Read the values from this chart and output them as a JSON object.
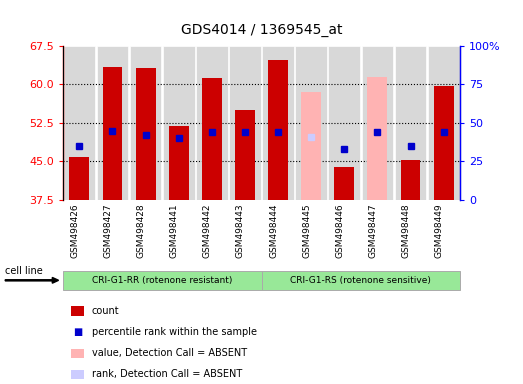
{
  "title": "GDS4014 / 1369545_at",
  "samples": [
    "GSM498426",
    "GSM498427",
    "GSM498428",
    "GSM498441",
    "GSM498442",
    "GSM498443",
    "GSM498444",
    "GSM498445",
    "GSM498446",
    "GSM498447",
    "GSM498448",
    "GSM498449"
  ],
  "bar_values": [
    45.8,
    63.5,
    63.2,
    51.8,
    61.2,
    55.0,
    64.8,
    58.5,
    43.8,
    61.5,
    45.2,
    59.8
  ],
  "bar_colors": [
    "#cc0000",
    "#cc0000",
    "#cc0000",
    "#cc0000",
    "#cc0000",
    "#cc0000",
    "#cc0000",
    "#ffb3b3",
    "#cc0000",
    "#ffb3b3",
    "#cc0000",
    "#cc0000"
  ],
  "absent_bar": [
    false,
    false,
    false,
    false,
    false,
    false,
    false,
    true,
    false,
    true,
    false,
    false
  ],
  "percentile_pct": [
    35,
    45,
    42,
    40,
    44,
    44,
    44,
    41,
    33,
    44,
    35,
    44
  ],
  "rank_absent_indices": [
    7
  ],
  "ymin": 37.5,
  "ymax": 67.5,
  "yticks_left": [
    37.5,
    45.0,
    52.5,
    60.0,
    67.5
  ],
  "yticks_right": [
    0,
    25,
    50,
    75,
    100
  ],
  "legend_items": [
    "count",
    "percentile rank within the sample",
    "value, Detection Call = ABSENT",
    "rank, Detection Call = ABSENT"
  ],
  "legend_colors": [
    "#cc0000",
    "#0000cc",
    "#ffb3b3",
    "#ccccff"
  ],
  "group1_label": "CRI-G1-RR (rotenone resistant)",
  "group2_label": "CRI-G1-RS (rotenone sensitive)",
  "group1_color": "#98e898",
  "group2_color": "#98e898",
  "cell_line_label": "cell line",
  "bar_width": 0.6,
  "col_bg_color": "#d8d8d8",
  "title_fontsize": 10
}
